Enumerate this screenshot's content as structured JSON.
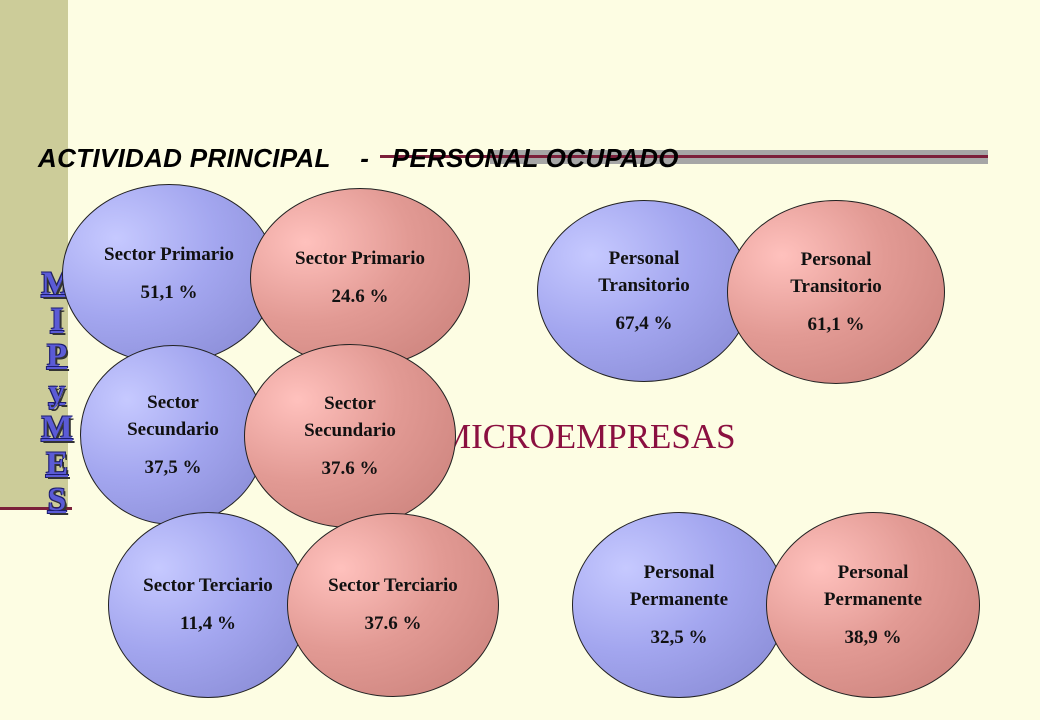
{
  "title": "ACTIVIDAD PRINCIPAL    -   PERSONAL OCUPADO",
  "vertical_label": [
    "M",
    "I",
    "P",
    "y",
    "M",
    "E",
    "S"
  ],
  "center_label": "MICROEMPRESAS",
  "colors": {
    "blue": "#a3a6ef",
    "pink": "#e29a94",
    "accent": "#8b1040",
    "sidebar": "#cccc99",
    "background": "#fdfde3"
  },
  "sectors": {
    "primario": {
      "blue": {
        "label": "Sector Primario",
        "value": "51,1 %"
      },
      "pink": {
        "label": "Sector Primario",
        "value": "24.6 %"
      }
    },
    "secundario": {
      "blue": {
        "label": "Sector Secundario",
        "value": "37,5 %"
      },
      "pink": {
        "label": "Sector Secundario",
        "value": "37.6 %"
      }
    },
    "terciario": {
      "blue": {
        "label": "Sector Terciario",
        "value": "11,4 %"
      },
      "pink": {
        "label": "Sector Terciario",
        "value": "37.6 %"
      }
    }
  },
  "personal": {
    "transitorio": {
      "blue": {
        "label": "Personal Transitorio",
        "value": "67,4 %"
      },
      "pink": {
        "label": "Personal Transitorio",
        "value": "61,1 %"
      }
    },
    "permanente": {
      "blue": {
        "label": "Personal Permanente",
        "value": "32,5 %"
      },
      "pink": {
        "label": "Personal Permanente",
        "value": "38,9 %"
      }
    }
  }
}
